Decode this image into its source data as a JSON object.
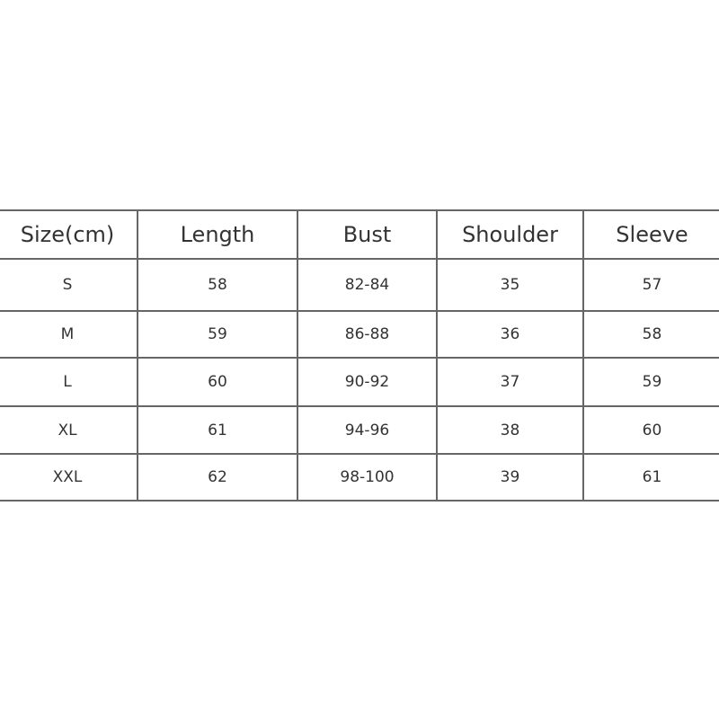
{
  "table": {
    "headers": [
      "Size(cm)",
      "Length",
      "Bust",
      "Shoulder",
      "Sleeve"
    ],
    "rows": [
      [
        "S",
        "58",
        "82-84",
        "35",
        "57"
      ],
      [
        "M",
        "59",
        "86-88",
        "36",
        "58"
      ],
      [
        "L",
        "60",
        "90-92",
        "37",
        "59"
      ],
      [
        "XL",
        "61",
        "94-96",
        "38",
        "60"
      ],
      [
        "XXL",
        "62",
        "98-100",
        "39",
        "61"
      ]
    ]
  }
}
